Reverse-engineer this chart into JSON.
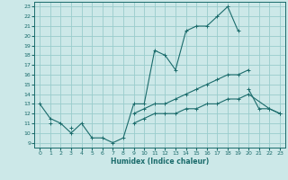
{
  "xlabel": "Humidex (Indice chaleur)",
  "bg_color": "#cce8e8",
  "line_color": "#1a6b6b",
  "grid_color": "#99cccc",
  "xlim": [
    -0.5,
    23.5
  ],
  "ylim": [
    8.5,
    23.5
  ],
  "yticks": [
    9,
    10,
    11,
    12,
    13,
    14,
    15,
    16,
    17,
    18,
    19,
    20,
    21,
    22,
    23
  ],
  "xticks": [
    0,
    1,
    2,
    3,
    4,
    5,
    6,
    7,
    8,
    9,
    10,
    11,
    12,
    13,
    14,
    15,
    16,
    17,
    18,
    19,
    20,
    21,
    22,
    23
  ],
  "line1_x": [
    0,
    1,
    2,
    3,
    4,
    5,
    6,
    7,
    8,
    9,
    10,
    11,
    12,
    13,
    14,
    15,
    16,
    17,
    18,
    19
  ],
  "line1_y": [
    13,
    11.5,
    11,
    10,
    11,
    9.5,
    9.5,
    9,
    9.5,
    13,
    13,
    18.5,
    18,
    16.5,
    20.5,
    21,
    21,
    22,
    23,
    20.5
  ],
  "line2_x": [
    20,
    21,
    22,
    23
  ],
  "line2_y": [
    14.5,
    12.5,
    12.5,
    12
  ],
  "line3_x": [
    0,
    1,
    2,
    3,
    4,
    5,
    6,
    7,
    8,
    9,
    10,
    11,
    12,
    13,
    14,
    15,
    16,
    17,
    18,
    19,
    20
  ],
  "line3_y": [
    null,
    11,
    null,
    10.5,
    null,
    null,
    null,
    null,
    null,
    12,
    12.5,
    13,
    13,
    13.5,
    14,
    14.5,
    15,
    15.5,
    16,
    16,
    16.5
  ],
  "line4_x": [
    0,
    1,
    2,
    3,
    4,
    5,
    6,
    7,
    8,
    9,
    10,
    11,
    12,
    13,
    14,
    15,
    16,
    17,
    18,
    19,
    20,
    22,
    23
  ],
  "line4_y": [
    null,
    null,
    null,
    null,
    null,
    null,
    null,
    null,
    null,
    11,
    11.5,
    12,
    12,
    12,
    12.5,
    12.5,
    13,
    13,
    13.5,
    13.5,
    14,
    12.5,
    12
  ]
}
